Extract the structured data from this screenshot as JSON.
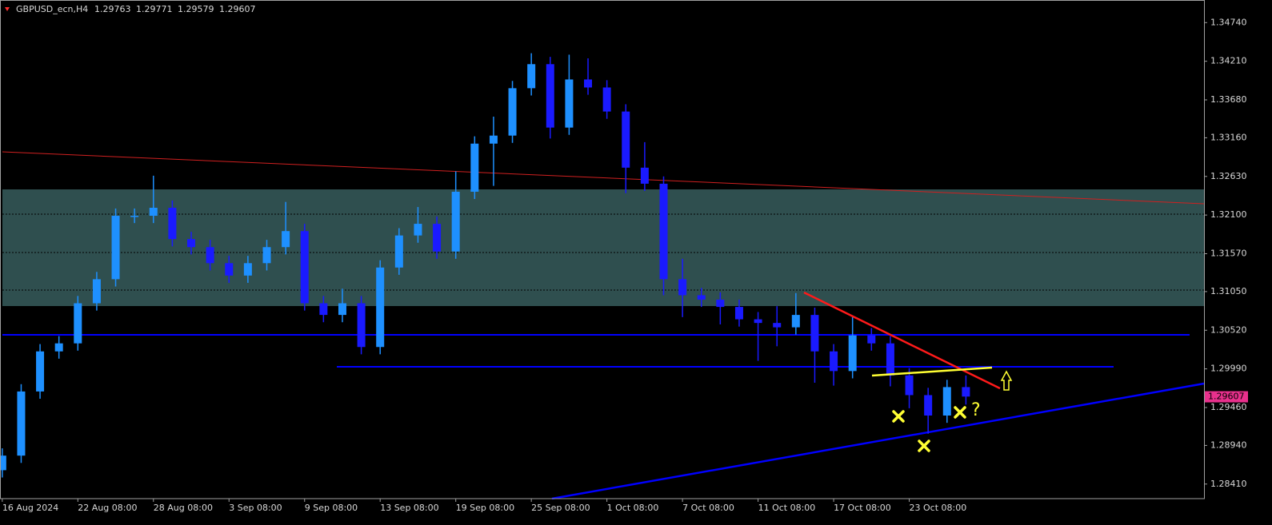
{
  "chart_data": {
    "type": "candlestick",
    "symbol": "GBPUSD_ecn,H4",
    "header_values": [
      1.29763,
      1.29771,
      1.29579,
      1.29607
    ],
    "last_price": 1.29607,
    "annotation": "?",
    "up_color": "#1e90ff",
    "down_color": "#1a1aff",
    "x": [
      0,
      0.25,
      0.5,
      0.75,
      1,
      1.25,
      1.5,
      1.75,
      2,
      2.25,
      2.5,
      2.75,
      3,
      3.25,
      3.5,
      3.75,
      4,
      4.25,
      4.5,
      4.75,
      5,
      5.25,
      5.5,
      5.75,
      6,
      6.25,
      6.5,
      6.75,
      7,
      7.25,
      7.5,
      7.75,
      8,
      8.25,
      8.5,
      8.75,
      9,
      9.25,
      9.5,
      9.75,
      10,
      10.25,
      10.5,
      10.75,
      11,
      11.25,
      11.5,
      11.75,
      12,
      12.25,
      12.5,
      12.75
    ],
    "open": [
      1.286,
      1.288,
      1.2968,
      1.3023,
      1.3034,
      1.3089,
      1.3122,
      1.3209,
      1.3209,
      1.322,
      1.3177,
      1.3166,
      1.3144,
      1.3127,
      1.3144,
      1.3166,
      1.3188,
      1.3089,
      1.3073,
      1.3089,
      1.3029,
      1.3138,
      1.3182,
      1.3198,
      1.316,
      1.3242,
      1.3308,
      1.3319,
      1.3384,
      1.3417,
      1.333,
      1.3396,
      1.3385,
      1.3352,
      1.3275,
      1.3253,
      1.3122,
      1.31,
      1.3094,
      1.3084,
      1.3067,
      1.3062,
      1.3056,
      1.3073,
      1.3023,
      1.2996,
      1.3045,
      1.3034,
      1.299,
      1.2963,
      1.2935,
      1.2974
    ],
    "high": [
      1.289,
      1.2978,
      1.3033,
      1.3044,
      1.3099,
      1.3132,
      1.3219,
      1.3219,
      1.3264,
      1.323,
      1.3187,
      1.3176,
      1.3154,
      1.3154,
      1.3176,
      1.3228,
      1.3198,
      1.3099,
      1.3109,
      1.3099,
      1.3148,
      1.3192,
      1.3221,
      1.3208,
      1.327,
      1.3318,
      1.3345,
      1.3394,
      1.3432,
      1.3427,
      1.343,
      1.3425,
      1.3395,
      1.3362,
      1.331,
      1.3263,
      1.315,
      1.311,
      1.3104,
      1.3094,
      1.3077,
      1.3085,
      1.3103,
      1.3083,
      1.3033,
      1.307,
      1.3055,
      1.3044,
      1.3,
      1.2973,
      1.2984,
      1.299
    ],
    "low": [
      1.285,
      1.287,
      1.2958,
      1.3013,
      1.3024,
      1.3079,
      1.3112,
      1.3199,
      1.3199,
      1.3167,
      1.3156,
      1.3134,
      1.3117,
      1.3117,
      1.3134,
      1.3156,
      1.3079,
      1.3063,
      1.3063,
      1.3019,
      1.3019,
      1.3128,
      1.3172,
      1.315,
      1.315,
      1.3232,
      1.325,
      1.3309,
      1.3374,
      1.3315,
      1.332,
      1.3375,
      1.3342,
      1.324,
      1.3243,
      1.31,
      1.307,
      1.3084,
      1.306,
      1.3057,
      1.301,
      1.303,
      1.3046,
      1.298,
      1.2976,
      1.2986,
      1.3024,
      1.2975,
      1.2945,
      1.291,
      1.2925,
      1.295
    ],
    "close": [
      1.288,
      1.2968,
      1.3023,
      1.3034,
      1.3089,
      1.3122,
      1.3209,
      1.3209,
      1.322,
      1.3177,
      1.3166,
      1.3144,
      1.3127,
      1.3144,
      1.3166,
      1.3188,
      1.3089,
      1.3073,
      1.3089,
      1.3029,
      1.3138,
      1.3182,
      1.3198,
      1.316,
      1.3242,
      1.3308,
      1.3319,
      1.3384,
      1.3417,
      1.333,
      1.3396,
      1.3385,
      1.3352,
      1.3275,
      1.3253,
      1.3122,
      1.31,
      1.3094,
      1.3084,
      1.3067,
      1.3062,
      1.3056,
      1.3073,
      1.3023,
      1.2996,
      1.3045,
      1.3034,
      1.299,
      1.2963,
      1.2935,
      1.2974,
      1.2961
    ],
    "xlim": [
      -0.03,
      15.9
    ],
    "ylim": [
      1.2821,
      1.3505
    ],
    "xticks": [
      {
        "value": 0,
        "label": "16 Aug 2024"
      },
      {
        "value": 1,
        "label": "22 Aug 08:00"
      },
      {
        "value": 2,
        "label": "28 Aug 08:00"
      },
      {
        "value": 3,
        "label": "3 Sep 08:00"
      },
      {
        "value": 4,
        "label": "9 Sep 08:00"
      },
      {
        "value": 5,
        "label": "13 Sep 08:00"
      },
      {
        "value": 6,
        "label": "19 Sep 08:00"
      },
      {
        "value": 7,
        "label": "25 Sep 08:00"
      },
      {
        "value": 8,
        "label": "1 Oct 08:00"
      },
      {
        "value": 9,
        "label": "7 Oct 08:00"
      },
      {
        "value": 10,
        "label": "11 Oct 08:00"
      },
      {
        "value": 11,
        "label": "17 Oct 08:00"
      },
      {
        "value": 12,
        "label": "23 Oct 08:00"
      }
    ],
    "yticks": [
      {
        "value": 1.3474,
        "label": "1.34740"
      },
      {
        "value": 1.3421,
        "label": "1.34210"
      },
      {
        "value": 1.3368,
        "label": "1.33680"
      },
      {
        "value": 1.3316,
        "label": "1.33160"
      },
      {
        "value": 1.3263,
        "label": "1.32630"
      },
      {
        "value": 1.321,
        "label": "1.32100"
      },
      {
        "value": 1.3157,
        "label": "1.31570"
      },
      {
        "value": 1.3105,
        "label": "1.31050"
      },
      {
        "value": 1.3052,
        "label": "1.30520"
      },
      {
        "value": 1.2999,
        "label": "1.29990"
      },
      {
        "value": 1.2946,
        "label": "1.29460"
      },
      {
        "value": 1.2894,
        "label": "1.28940"
      },
      {
        "value": 1.2841,
        "label": "1.28410"
      }
    ]
  }
}
